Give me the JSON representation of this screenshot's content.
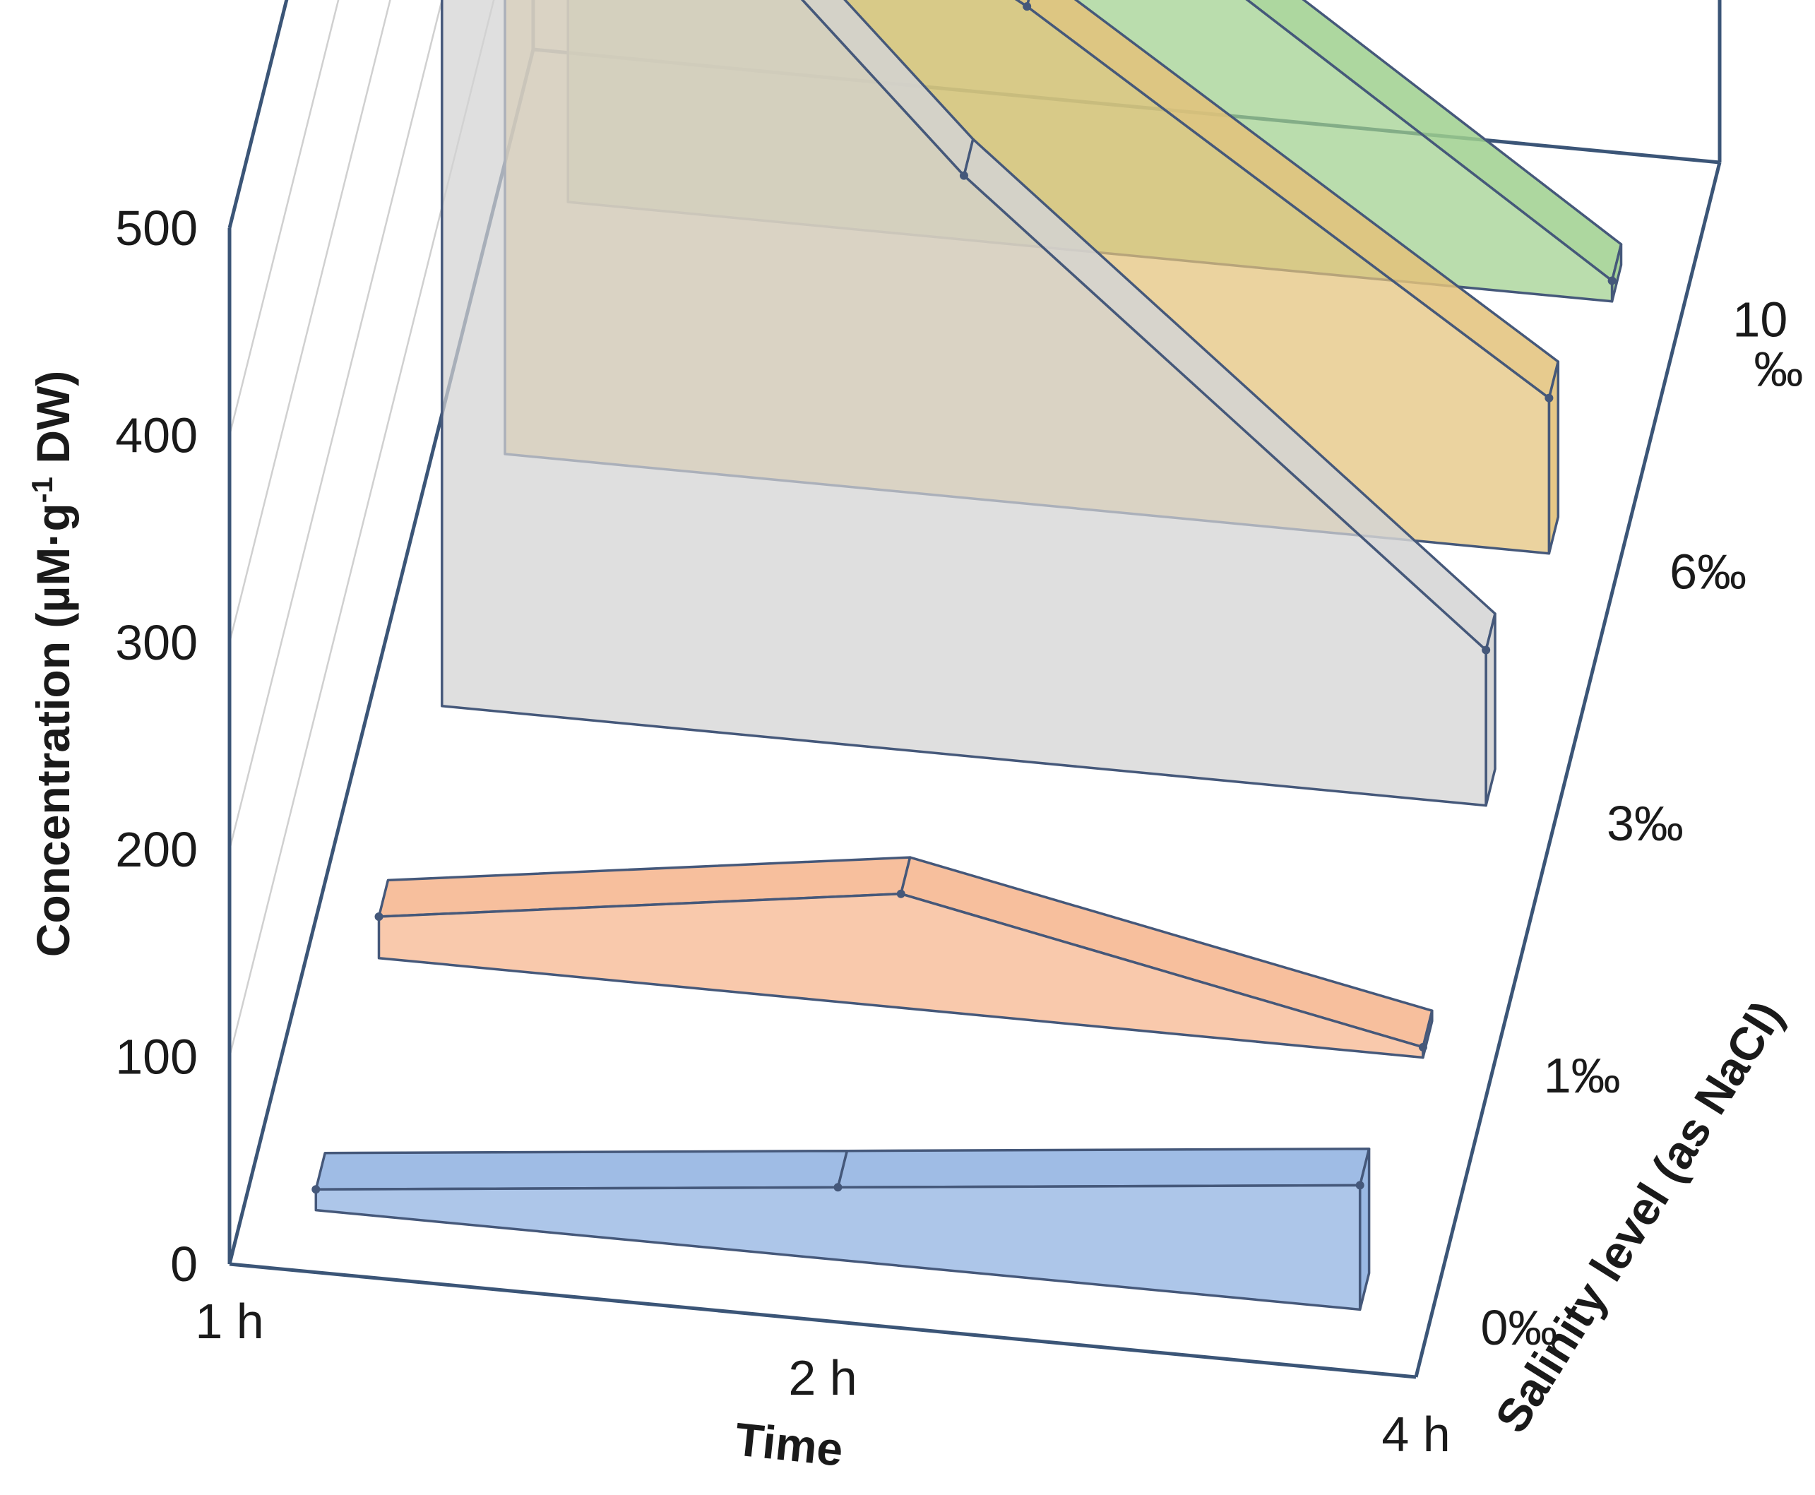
{
  "chart_data": {
    "type": "area",
    "subtype": "3d-ribbon",
    "title": "",
    "xlabel": "Time",
    "ylabel_main": "Concentration (µM·g",
    "ylabel_sup": "-1",
    "ylabel_tail": " DW)",
    "zlabel": "Salinity level (as NaCl)",
    "x": [
      "1 h",
      "2 h",
      "4 h"
    ],
    "ylim": [
      0,
      500
    ],
    "yticks": [
      "0",
      "100",
      "200",
      "300",
      "400",
      "500"
    ],
    "depth_labels": [
      "0‰",
      "1‰",
      "3‰",
      "6‰",
      "10\n‰"
    ],
    "series": [
      {
        "values": [
          10,
          35,
          60
        ],
        "color": "#8eb0e0"
      },
      {
        "values": [
          20,
          55,
          5
        ],
        "color": "#f6b48c"
      },
      {
        "values": [
          530,
          280,
          75
        ],
        "color": "#d3d3d3"
      },
      {
        "values": [
          380,
          240,
          75
        ],
        "color": "#e3c27a"
      },
      {
        "values": [
          255,
          180,
          10
        ],
        "color": "#9fd08e"
      }
    ],
    "grid": true,
    "legend": "none"
  }
}
